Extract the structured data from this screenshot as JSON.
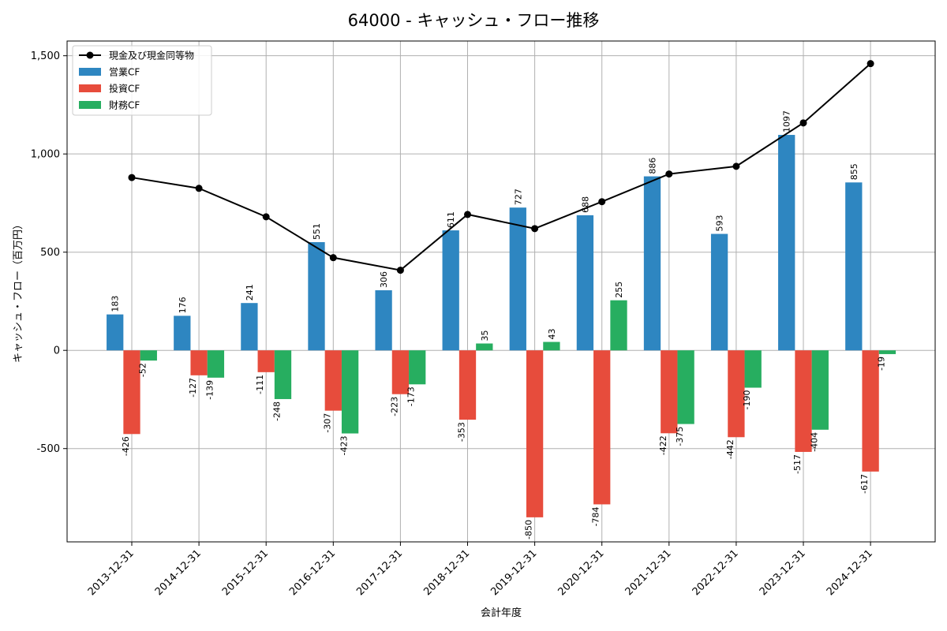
{
  "chart_data": {
    "type": "bar",
    "title": "64000 - キャッシュ・フロー推移",
    "xlabel": "会計年度",
    "ylabel": "キャッシュ・フロー（百万円）",
    "ylim": [
      -975,
      1575
    ],
    "yticks": [
      -500,
      0,
      500,
      1000,
      1500
    ],
    "ytick_labels": [
      "-500",
      "0",
      "500",
      "1,000",
      "1,500"
    ],
    "grid": true,
    "legend_position": "top-left",
    "categories": [
      "2013-12-31",
      "2014-12-31",
      "2015-12-31",
      "2016-12-31",
      "2017-12-31",
      "2018-12-31",
      "2019-12-31",
      "2020-12-31",
      "2021-12-31",
      "2022-12-31",
      "2023-12-31",
      "2024-12-31"
    ],
    "series": [
      {
        "name": "営業CF",
        "kind": "bar",
        "color": "#2e86c1",
        "values": [
          183,
          176,
          241,
          551,
          306,
          611,
          727,
          688,
          886,
          593,
          1097,
          855
        ]
      },
      {
        "name": "投資CF",
        "kind": "bar",
        "color": "#e74c3c",
        "values": [
          -426,
          -127,
          -111,
          -307,
          -223,
          -353,
          -850,
          -784,
          -422,
          -442,
          -517,
          -617
        ]
      },
      {
        "name": "財務CF",
        "kind": "bar",
        "color": "#27ae60",
        "values": [
          -52,
          -139,
          -248,
          -423,
          -173,
          35,
          43,
          255,
          -375,
          -190,
          -404,
          -19
        ]
      },
      {
        "name": "現金及び現金同等物",
        "kind": "line",
        "color": "#000000",
        "values": [
          880,
          825,
          680,
          472,
          408,
          692,
          620,
          757,
          898,
          937,
          1158,
          1460
        ]
      }
    ]
  }
}
